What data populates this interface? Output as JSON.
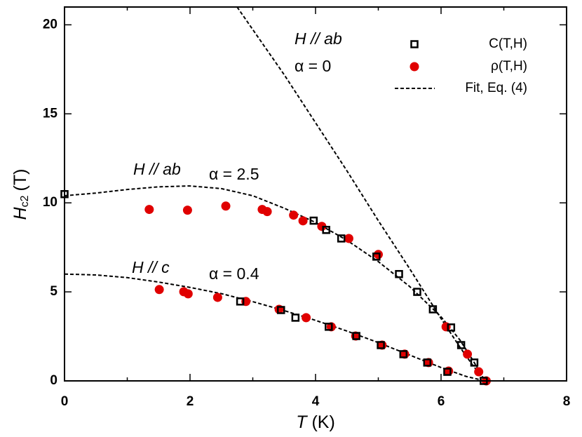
{
  "chart_data": {
    "type": "scatter",
    "xlabel": {
      "symbol": "T",
      "unit": "(K)"
    },
    "ylabel": {
      "symbol": "H",
      "subscript": "c2",
      "unit": "(T)"
    },
    "xlim": [
      0,
      8
    ],
    "ylim": [
      0,
      21
    ],
    "xticks": [
      0,
      2,
      4,
      6,
      8
    ],
    "xminor": [
      1,
      3,
      5,
      7
    ],
    "yticks": [
      0,
      5,
      10,
      15,
      20
    ],
    "legend": "upper right",
    "series": [
      {
        "name": "ρ(T,H)",
        "marker": "circle",
        "color": "#e00000",
        "x": [
          1.35,
          1.96,
          2.57,
          3.15,
          3.23,
          3.65,
          3.8,
          4.1,
          4.53,
          5.0,
          6.08,
          6.42,
          6.6,
          6.72,
          1.51,
          1.9,
          1.97,
          2.44,
          2.89,
          3.42,
          3.85,
          4.25,
          4.64,
          5.06,
          5.42,
          5.8,
          6.12
        ],
        "values": [
          9.63,
          9.59,
          9.82,
          9.63,
          9.51,
          9.31,
          8.99,
          8.68,
          8.0,
          7.1,
          3.04,
          1.5,
          0.51,
          0,
          5.13,
          5.01,
          4.89,
          4.69,
          4.46,
          4.02,
          3.55,
          3.04,
          2.52,
          2.01,
          1.5,
          1.03,
          0.55
        ]
      },
      {
        "name": "C(T,H)",
        "marker": "square",
        "color": "#000000",
        "x": [
          0,
          3.97,
          4.17,
          4.41,
          4.97,
          5.33,
          5.62,
          5.87,
          6.16,
          6.32,
          6.53,
          6.68,
          2.8,
          3.45,
          3.68,
          4.21,
          4.65,
          5.04,
          5.4,
          5.78,
          6.1
        ],
        "values": [
          10.49,
          9.0,
          8.48,
          8.0,
          6.98,
          6.0,
          5.0,
          4.02,
          3.0,
          2.01,
          1.03,
          0,
          4.46,
          3.98,
          3.55,
          3.04,
          2.52,
          2.01,
          1.5,
          1.03,
          0.51
        ]
      }
    ],
    "fit": {
      "name": "Fit, Eq. (4)",
      "color": "#000000",
      "curves": [
        {
          "x": [
            2.75,
            3.5,
            4.0,
            4.5,
            5.0,
            5.5,
            6.0,
            6.3,
            6.5,
            6.7
          ],
          "values": [
            21,
            17.2,
            14.5,
            11.8,
            9.0,
            6.3,
            3.5,
            1.9,
            0.9,
            0
          ]
        },
        {
          "x": [
            0,
            0.5,
            1.0,
            1.5,
            2.0,
            2.5,
            3.0,
            3.5,
            4.0,
            4.5,
            5.0,
            5.5,
            6.0,
            6.3,
            6.5,
            6.7
          ],
          "values": [
            10.4,
            10.55,
            10.75,
            10.9,
            10.95,
            10.8,
            10.4,
            9.7,
            8.9,
            7.9,
            6.7,
            5.3,
            3.6,
            2.3,
            1.2,
            0
          ]
        },
        {
          "x": [
            0,
            0.5,
            1.0,
            1.5,
            2.0,
            2.5,
            3.0,
            3.5,
            4.0,
            4.5,
            5.0,
            5.5,
            6.0,
            6.4,
            6.7
          ],
          "values": [
            6.0,
            5.95,
            5.8,
            5.55,
            5.25,
            4.9,
            4.45,
            3.95,
            3.4,
            2.8,
            2.15,
            1.45,
            0.75,
            0.25,
            0
          ]
        }
      ]
    },
    "annotations": [
      "H // ab",
      "α = 0",
      "H // ab",
      "α = 2.5",
      "H // c",
      "α = 0.4"
    ]
  }
}
